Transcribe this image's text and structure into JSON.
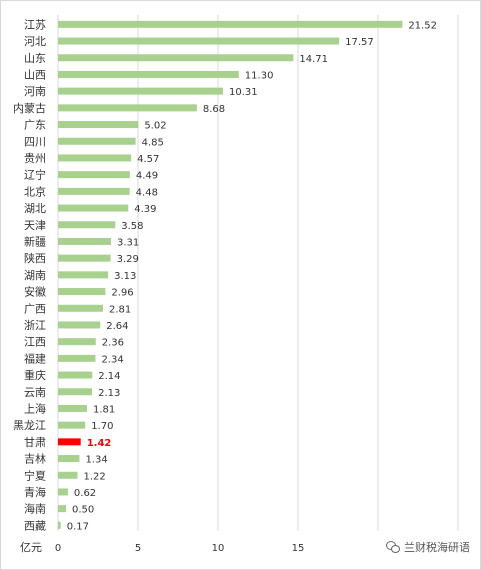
{
  "chart_data": {
    "type": "bar",
    "orientation": "horizontal",
    "unit_label": "亿元",
    "xlim": [
      0,
      25
    ],
    "x_ticks": [
      0,
      5,
      10,
      15
    ],
    "grid": true,
    "bar_color": "#a9d18e",
    "highlight_color": "#ff0000",
    "highlight_category": "甘肃",
    "categories": [
      "江苏",
      "河北",
      "山东",
      "山西",
      "河南",
      "内蒙古",
      "广东",
      "四川",
      "贵州",
      "辽宁",
      "北京",
      "湖北",
      "天津",
      "新疆",
      "陕西",
      "湖南",
      "安徽",
      "广西",
      "浙江",
      "江西",
      "福建",
      "重庆",
      "云南",
      "上海",
      "黑龙江",
      "甘肃",
      "吉林",
      "宁夏",
      "青海",
      "海南",
      "西藏"
    ],
    "values": [
      21.52,
      17.57,
      14.71,
      11.3,
      10.31,
      8.68,
      5.02,
      4.85,
      4.57,
      4.49,
      4.48,
      4.39,
      3.58,
      3.31,
      3.29,
      3.13,
      2.96,
      2.81,
      2.64,
      2.36,
      2.34,
      2.14,
      2.13,
      1.81,
      1.7,
      1.42,
      1.34,
      1.22,
      0.62,
      0.5,
      0.17
    ],
    "value_labels": [
      "21.52",
      "17.57",
      "14.71",
      "11.30",
      "10.31",
      "8.68",
      "5.02",
      "4.85",
      "4.57",
      "4.49",
      "4.48",
      "4.39",
      "3.58",
      "3.31",
      "3.29",
      "3.13",
      "2.96",
      "2.81",
      "2.64",
      "2.36",
      "2.34",
      "2.14",
      "2.13",
      "1.81",
      "1.70",
      "1.42",
      "1.34",
      "1.22",
      "0.62",
      "0.50",
      "0.17"
    ]
  },
  "watermark": {
    "icon": "wechat-icon",
    "text": "兰财税海研语"
  }
}
